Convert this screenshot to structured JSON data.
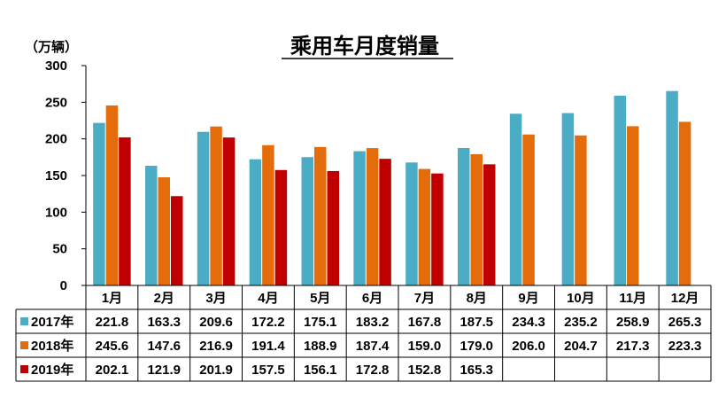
{
  "chart_data": {
    "type": "bar",
    "title": "乘用车月度销量",
    "unit_label": "（万辆）",
    "ylim": [
      0,
      300
    ],
    "yticks": [
      "0",
      "50",
      "100",
      "150",
      "200",
      "250",
      "300"
    ],
    "categories": [
      "1月",
      "2月",
      "3月",
      "4月",
      "5月",
      "6月",
      "7月",
      "8月",
      "9月",
      "10月",
      "11月",
      "12月"
    ],
    "series": [
      {
        "name": "2017年",
        "color": "#4bacc6",
        "values": [
          221.8,
          163.3,
          209.6,
          172.2,
          175.1,
          183.2,
          167.8,
          187.5,
          234.3,
          235.2,
          258.9,
          265.3
        ],
        "labels": [
          "221.8",
          "163.3",
          "209.6",
          "172.2",
          "175.1",
          "183.2",
          "167.8",
          "187.5",
          "234.3",
          "235.2",
          "258.9",
          "265.3"
        ]
      },
      {
        "name": "2018年",
        "color": "#e46c0a",
        "values": [
          245.6,
          147.6,
          216.9,
          191.4,
          188.9,
          187.4,
          159.0,
          179.0,
          206.0,
          204.7,
          217.3,
          223.3
        ],
        "labels": [
          "245.6",
          "147.6",
          "216.9",
          "191.4",
          "188.9",
          "187.4",
          "159.0",
          "179.0",
          "206.0",
          "204.7",
          "217.3",
          "223.3"
        ]
      },
      {
        "name": "2019年",
        "color": "#c00000",
        "values": [
          202.1,
          121.9,
          201.9,
          157.5,
          156.1,
          172.8,
          152.8,
          165.3,
          null,
          null,
          null,
          null
        ],
        "labels": [
          "202.1",
          "121.9",
          "201.9",
          "157.5",
          "156.1",
          "172.8",
          "152.8",
          "165.3",
          "",
          "",
          "",
          ""
        ]
      }
    ],
    "grid": false,
    "legend": "data-table"
  }
}
